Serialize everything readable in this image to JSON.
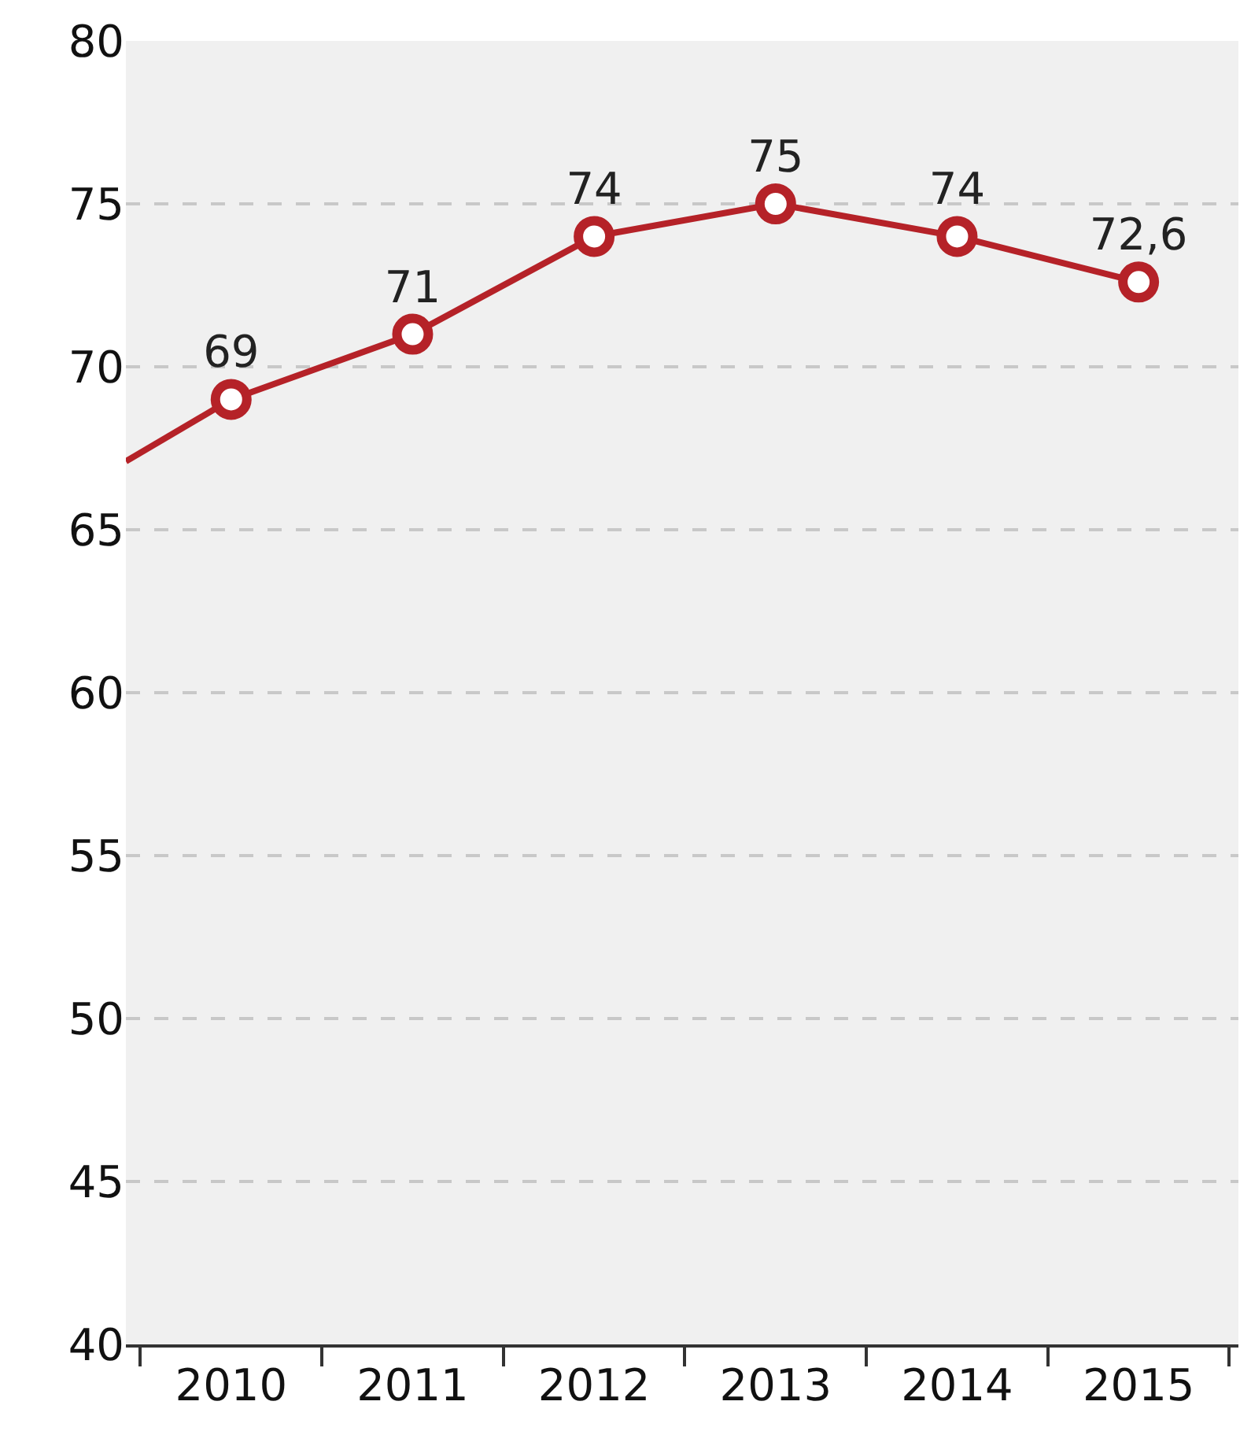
{
  "chart_data": {
    "type": "line",
    "x": [
      2010,
      2011,
      2012,
      2013,
      2014,
      2015
    ],
    "series": [
      {
        "color": "#b52228",
        "values": [
          69,
          71,
          74,
          75,
          74,
          72.6
        ],
        "value_labels": [
          "69",
          "71",
          "74",
          "75",
          "74",
          "72,6"
        ],
        "marker": "circle"
      },
      {
        "color": "#b52228",
        "x": [
          2009.42,
          2010
        ],
        "values": [
          67.1,
          69
        ],
        "marker": "none"
      }
    ],
    "xlim": [
      2009.42,
      2015.55
    ],
    "xticks": [
      {
        "value": 2009.5,
        "label": null
      },
      {
        "value": 2010,
        "label": "2010"
      },
      {
        "value": 2010.5,
        "label": null
      },
      {
        "value": 2011,
        "label": "2011"
      },
      {
        "value": 2011.5,
        "label": null
      },
      {
        "value": 2012,
        "label": "2012"
      },
      {
        "value": 2012.5,
        "label": null
      },
      {
        "value": 2013,
        "label": "2013"
      },
      {
        "value": 2013.5,
        "label": null
      },
      {
        "value": 2014,
        "label": "2014"
      },
      {
        "value": 2014.5,
        "label": null
      },
      {
        "value": 2015,
        "label": "2015"
      },
      {
        "value": 2015.5,
        "label": null
      }
    ],
    "ylim": [
      40,
      80
    ],
    "yticks": [
      40,
      45,
      50,
      55,
      60,
      65,
      70,
      75,
      80
    ],
    "grid": "y",
    "line_style": "solid",
    "legend": false
  }
}
